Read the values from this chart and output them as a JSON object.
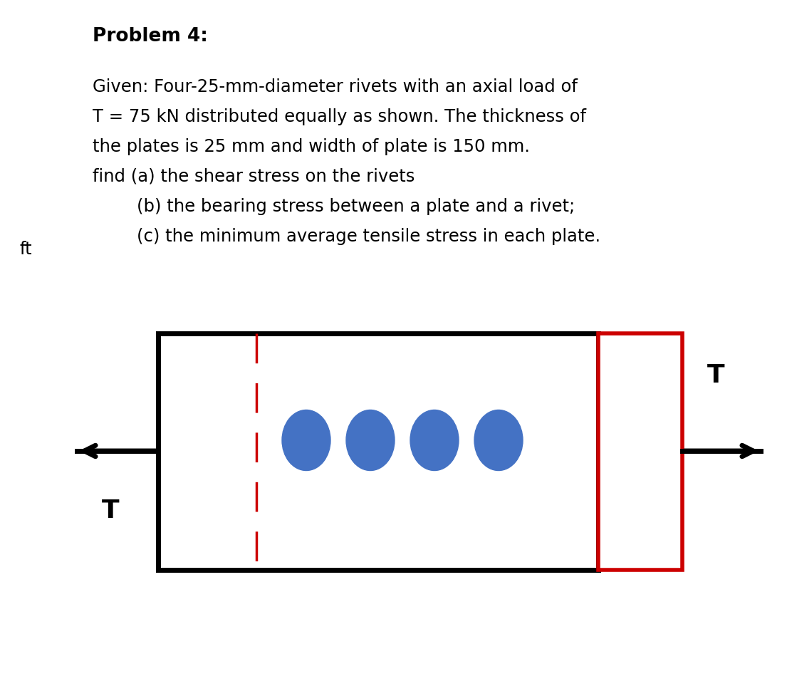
{
  "title": "Problem 4:",
  "lines": [
    "Given: Four-25-mm-diameter rivets with an axial load of",
    "T = 75 kN distributed equally as shown. The thickness of",
    "the plates is 25 mm and width of plate is 150 mm.",
    "find (a) the shear stress on the rivets",
    "        (b) the bearing stress between a plate and a rivet;",
    "        (c) the minimum average tensile stress in each plate."
  ],
  "bg_color": "#ffffff",
  "text_color": "#000000",
  "title_fontsize": 19,
  "body_fontsize": 17.5,
  "rivet_color": "#4472c4",
  "main_plate_color": "#000000",
  "red_plate_color": "#cc0000",
  "dashed_color": "#cc0000"
}
